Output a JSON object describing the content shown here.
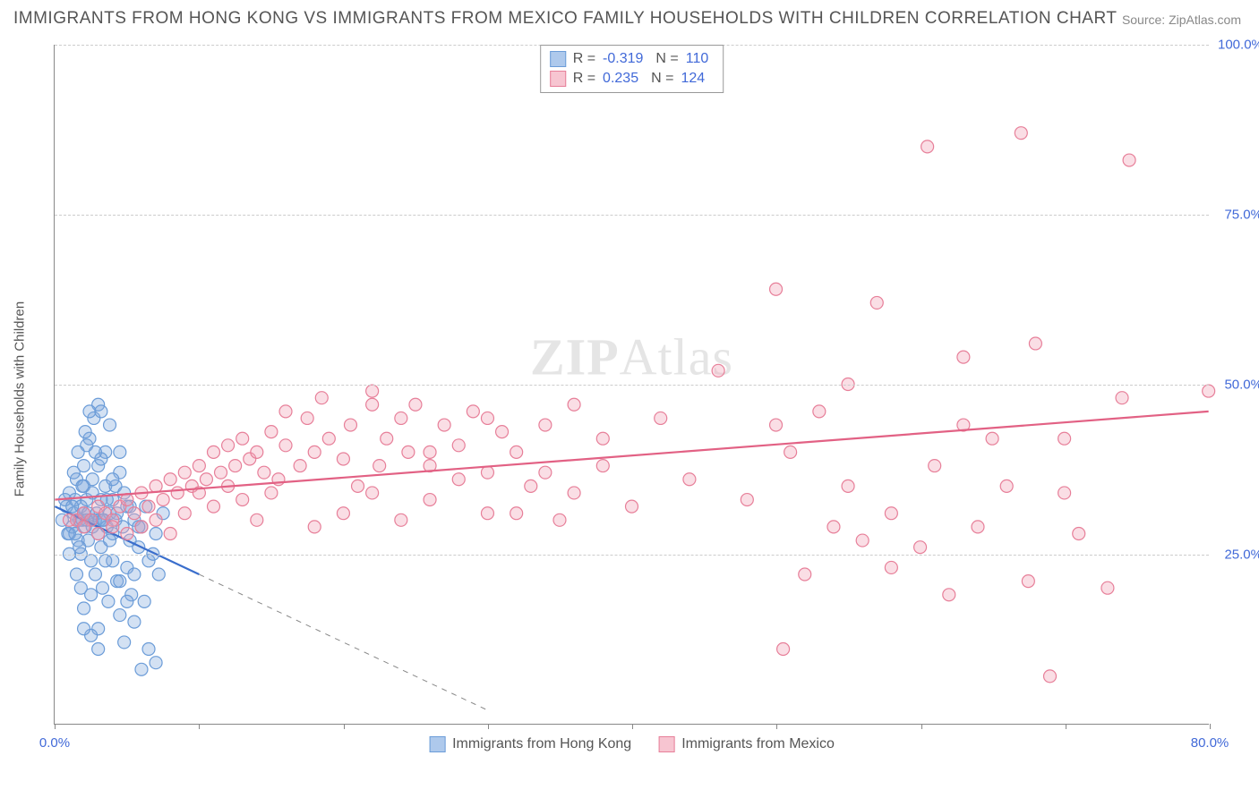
{
  "title": "IMMIGRANTS FROM HONG KONG VS IMMIGRANTS FROM MEXICO FAMILY HOUSEHOLDS WITH CHILDREN CORRELATION CHART",
  "source": "Source: ZipAtlas.com",
  "ylabel": "Family Households with Children",
  "watermark_bold": "ZIP",
  "watermark_rest": "Atlas",
  "chart": {
    "type": "scatter",
    "background_color": "#ffffff",
    "grid_color": "#cccccc",
    "axis_color": "#888888",
    "text_color": "#555555",
    "value_color": "#4169d8",
    "xlim": [
      0,
      80
    ],
    "ylim": [
      0,
      100
    ],
    "xticks": [
      0,
      10,
      20,
      30,
      40,
      50,
      60,
      70,
      80
    ],
    "xtick_labels": {
      "0": "0.0%",
      "80": "80.0%"
    },
    "yticks": [
      25,
      50,
      75,
      100
    ],
    "ytick_labels": {
      "25": "25.0%",
      "50": "50.0%",
      "75": "75.0%",
      "100": "100.0%"
    },
    "marker_radius": 7,
    "marker_stroke_width": 1.2,
    "trend_line_width": 2.2
  },
  "legend_top": [
    {
      "swatch_fill": "#aec9ec",
      "swatch_stroke": "#6b9cd8",
      "r_label": "R =",
      "r_val": "-0.319",
      "n_label": "N =",
      "n_val": "110"
    },
    {
      "swatch_fill": "#f7c5d1",
      "swatch_stroke": "#e77f99",
      "r_label": "R =",
      "r_val": "0.235",
      "n_label": "N =",
      "n_val": "124"
    }
  ],
  "legend_bottom": [
    {
      "swatch_fill": "#aec9ec",
      "swatch_stroke": "#6b9cd8",
      "label": "Immigrants from Hong Kong"
    },
    {
      "swatch_fill": "#f7c5d1",
      "swatch_stroke": "#e77f99",
      "label": "Immigrants from Mexico"
    }
  ],
  "series": [
    {
      "name": "hongkong",
      "fill": "rgba(130,170,220,0.35)",
      "stroke": "#6b9cd8",
      "trend_color": "#3a6ecc",
      "trend": {
        "x1": 0,
        "y1": 32,
        "x2": 10,
        "y2": 22
      },
      "trend_ext": {
        "x1": 10,
        "y1": 22,
        "x2": 30,
        "y2": 2
      },
      "data": [
        [
          0.5,
          30
        ],
        [
          0.8,
          32
        ],
        [
          1.0,
          28
        ],
        [
          1.0,
          34
        ],
        [
          1.2,
          29
        ],
        [
          1.3,
          31
        ],
        [
          1.4,
          33
        ],
        [
          1.5,
          30
        ],
        [
          1.5,
          36
        ],
        [
          1.6,
          27
        ],
        [
          1.7,
          30
        ],
        [
          1.8,
          32
        ],
        [
          1.8,
          25
        ],
        [
          1.9,
          30
        ],
        [
          2.0,
          31
        ],
        [
          2.0,
          35
        ],
        [
          2.0,
          38
        ],
        [
          2.1,
          29
        ],
        [
          2.2,
          30
        ],
        [
          2.2,
          33
        ],
        [
          2.3,
          27
        ],
        [
          2.3,
          31
        ],
        [
          2.4,
          42
        ],
        [
          2.5,
          30
        ],
        [
          2.5,
          24
        ],
        [
          2.6,
          29
        ],
        [
          2.6,
          34
        ],
        [
          2.7,
          45
        ],
        [
          2.8,
          30
        ],
        [
          2.8,
          22
        ],
        [
          2.9,
          31
        ],
        [
          3.0,
          28
        ],
        [
          3.0,
          38
        ],
        [
          3.0,
          47
        ],
        [
          3.1,
          30
        ],
        [
          3.2,
          26
        ],
        [
          3.2,
          33
        ],
        [
          3.3,
          20
        ],
        [
          3.4,
          30
        ],
        [
          3.5,
          35
        ],
        [
          3.5,
          40
        ],
        [
          3.6,
          29
        ],
        [
          3.7,
          18
        ],
        [
          3.8,
          31
        ],
        [
          3.8,
          44
        ],
        [
          4.0,
          28
        ],
        [
          4.0,
          24
        ],
        [
          4.0,
          33
        ],
        [
          4.2,
          30
        ],
        [
          4.3,
          21
        ],
        [
          4.5,
          37
        ],
        [
          4.5,
          16
        ],
        [
          4.7,
          29
        ],
        [
          4.8,
          12
        ],
        [
          5.0,
          32
        ],
        [
          5.0,
          23
        ],
        [
          5.2,
          27
        ],
        [
          5.3,
          19
        ],
        [
          5.5,
          15
        ],
        [
          5.5,
          30
        ],
        [
          5.8,
          26
        ],
        [
          6.0,
          8
        ],
        [
          6.0,
          29
        ],
        [
          6.2,
          18
        ],
        [
          6.5,
          11
        ],
        [
          6.5,
          24
        ],
        [
          7.0,
          28
        ],
        [
          7.0,
          9
        ],
        [
          7.2,
          22
        ],
        [
          7.5,
          31
        ],
        [
          2.0,
          17
        ],
        [
          2.5,
          19
        ],
        [
          3.0,
          14
        ],
        [
          3.5,
          24
        ],
        [
          1.5,
          22
        ],
        [
          1.8,
          20
        ],
        [
          2.2,
          41
        ],
        [
          2.6,
          36
        ],
        [
          3.2,
          39
        ],
        [
          3.8,
          27
        ],
        [
          1.0,
          25
        ],
        [
          1.3,
          37
        ],
        [
          1.6,
          40
        ],
        [
          1.9,
          35
        ],
        [
          4.2,
          35
        ],
        [
          4.5,
          40
        ],
        [
          2.4,
          46
        ],
        [
          2.1,
          43
        ],
        [
          0.7,
          33
        ],
        [
          0.9,
          28
        ],
        [
          1.2,
          32
        ],
        [
          1.4,
          28
        ],
        [
          1.7,
          26
        ],
        [
          3.3,
          30
        ],
        [
          3.6,
          33
        ],
        [
          4.0,
          36
        ],
        [
          4.3,
          31
        ],
        [
          4.8,
          34
        ],
        [
          5.2,
          32
        ],
        [
          5.8,
          29
        ],
        [
          2.5,
          13
        ],
        [
          3.0,
          11
        ],
        [
          2.0,
          14
        ],
        [
          4.5,
          21
        ],
        [
          5.0,
          18
        ],
        [
          5.5,
          22
        ],
        [
          6.3,
          32
        ],
        [
          6.8,
          25
        ],
        [
          3.2,
          46
        ],
        [
          2.8,
          40
        ]
      ]
    },
    {
      "name": "mexico",
      "fill": "rgba(240,160,180,0.35)",
      "stroke": "#e77f99",
      "trend_color": "#e26184",
      "trend": {
        "x1": 0,
        "y1": 33,
        "x2": 80,
        "y2": 46
      },
      "data": [
        [
          1.5,
          30
        ],
        [
          2.0,
          31
        ],
        [
          2.5,
          30
        ],
        [
          3.0,
          32
        ],
        [
          3.5,
          31
        ],
        [
          4.0,
          30
        ],
        [
          4.5,
          32
        ],
        [
          5.0,
          33
        ],
        [
          5.5,
          31
        ],
        [
          6.0,
          34
        ],
        [
          6.5,
          32
        ],
        [
          7.0,
          35
        ],
        [
          7.5,
          33
        ],
        [
          8.0,
          36
        ],
        [
          8.5,
          34
        ],
        [
          9.0,
          37
        ],
        [
          9.5,
          35
        ],
        [
          10.0,
          38
        ],
        [
          10.5,
          36
        ],
        [
          11.0,
          40
        ],
        [
          11.5,
          37
        ],
        [
          12.0,
          41
        ],
        [
          12.5,
          38
        ],
        [
          13.0,
          42
        ],
        [
          13.5,
          39
        ],
        [
          14.0,
          40
        ],
        [
          14.5,
          37
        ],
        [
          15.0,
          43
        ],
        [
          15.5,
          36
        ],
        [
          16.0,
          41
        ],
        [
          17.0,
          38
        ],
        [
          17.5,
          45
        ],
        [
          18.0,
          40
        ],
        [
          18.5,
          48
        ],
        [
          19.0,
          42
        ],
        [
          20.0,
          39
        ],
        [
          20.5,
          44
        ],
        [
          21.0,
          35
        ],
        [
          22.0,
          47
        ],
        [
          22.5,
          38
        ],
        [
          23.0,
          42
        ],
        [
          24.0,
          45
        ],
        [
          24.5,
          40
        ],
        [
          25.0,
          47
        ],
        [
          26.0,
          38
        ],
        [
          27.0,
          44
        ],
        [
          28.0,
          41
        ],
        [
          29.0,
          46
        ],
        [
          30.0,
          37
        ],
        [
          31.0,
          43
        ],
        [
          32.0,
          40
        ],
        [
          33.0,
          35
        ],
        [
          34.0,
          44
        ],
        [
          35.0,
          30
        ],
        [
          36.0,
          47
        ],
        [
          38.0,
          38
        ],
        [
          40.0,
          32
        ],
        [
          42.0,
          45
        ],
        [
          44.0,
          36
        ],
        [
          46.0,
          52
        ],
        [
          48.0,
          33
        ],
        [
          50.0,
          64
        ],
        [
          50.5,
          11
        ],
        [
          51.0,
          40
        ],
        [
          52.0,
          22
        ],
        [
          53.0,
          46
        ],
        [
          54.0,
          29
        ],
        [
          55.0,
          35
        ],
        [
          56.0,
          27
        ],
        [
          57.0,
          62
        ],
        [
          58.0,
          23
        ],
        [
          60.0,
          26
        ],
        [
          60.5,
          85
        ],
        [
          61.0,
          38
        ],
        [
          62.0,
          19
        ],
        [
          63.0,
          54
        ],
        [
          64.0,
          29
        ],
        [
          65.0,
          42
        ],
        [
          67.0,
          87
        ],
        [
          67.5,
          21
        ],
        [
          68.0,
          56
        ],
        [
          69.0,
          7
        ],
        [
          70.0,
          42
        ],
        [
          71.0,
          28
        ],
        [
          73.0,
          20
        ],
        [
          74.0,
          48
        ],
        [
          74.5,
          83
        ],
        [
          80.0,
          49
        ],
        [
          18.0,
          29
        ],
        [
          20.0,
          31
        ],
        [
          22.0,
          34
        ],
        [
          24.0,
          30
        ],
        [
          26.0,
          33
        ],
        [
          28.0,
          36
        ],
        [
          30.0,
          45
        ],
        [
          32.0,
          31
        ],
        [
          34.0,
          37
        ],
        [
          36.0,
          34
        ],
        [
          38.0,
          42
        ],
        [
          16.0,
          46
        ],
        [
          22.0,
          49
        ],
        [
          26.0,
          40
        ],
        [
          30.0,
          31
        ],
        [
          15.0,
          34
        ],
        [
          14.0,
          30
        ],
        [
          13.0,
          33
        ],
        [
          12.0,
          35
        ],
        [
          11.0,
          32
        ],
        [
          10.0,
          34
        ],
        [
          9.0,
          31
        ],
        [
          8.0,
          28
        ],
        [
          7.0,
          30
        ],
        [
          6.0,
          29
        ],
        [
          5.0,
          28
        ],
        [
          4.0,
          29
        ],
        [
          3.0,
          28
        ],
        [
          2.0,
          29
        ],
        [
          1.0,
          30
        ],
        [
          50.0,
          44
        ],
        [
          55.0,
          50
        ],
        [
          58.0,
          31
        ],
        [
          63.0,
          44
        ],
        [
          66.0,
          35
        ],
        [
          70.0,
          34
        ]
      ]
    }
  ]
}
